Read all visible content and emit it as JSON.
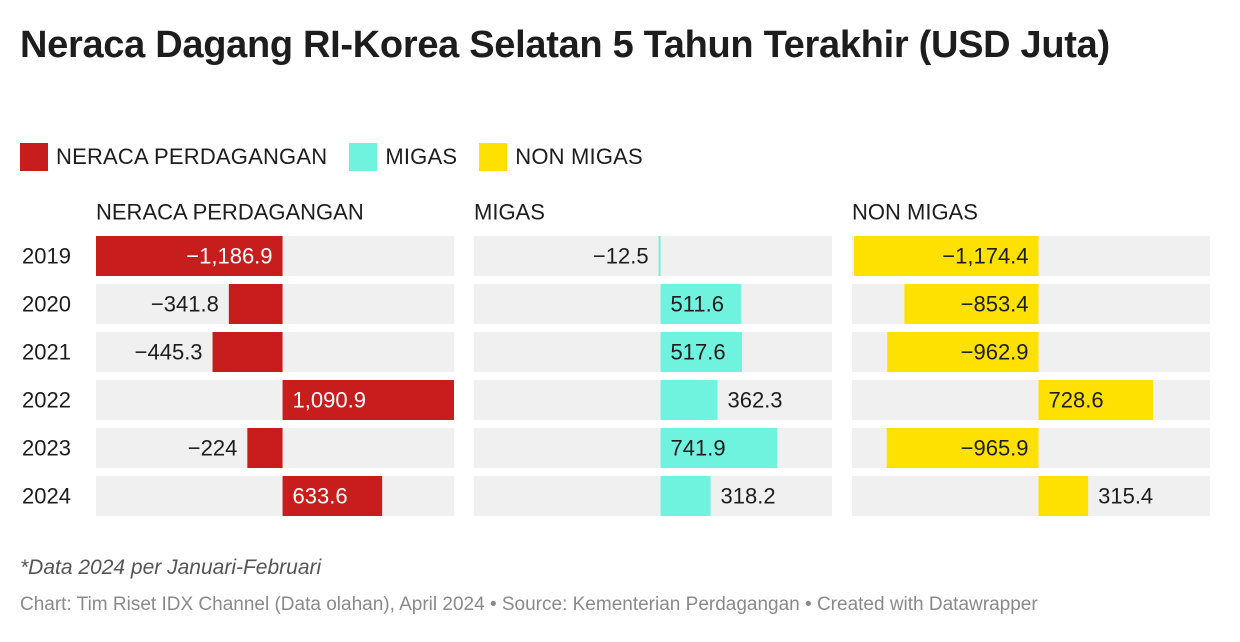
{
  "title": "Neraca Dagang RI-Korea Selatan 5 Tahun Terakhir (USD Juta)",
  "legend": [
    {
      "label": "NERACA PERDAGANGAN",
      "color": "#c71e1d"
    },
    {
      "label": "MIGAS",
      "color": "#6ff2de"
    },
    {
      "label": "NON MIGAS",
      "color": "#ffe100"
    }
  ],
  "chart_data": {
    "type": "bar",
    "categories": [
      "2019",
      "2020",
      "2021",
      "2022",
      "2023",
      "2024"
    ],
    "series": [
      {
        "name": "NERACA PERDAGANGAN",
        "color": "#c71e1d",
        "label_color_inside": "#ffffff",
        "values": [
          -1186.9,
          -341.8,
          -445.3,
          1090.9,
          -224,
          633.6
        ],
        "labels": [
          "−1,186.9",
          "−341.8",
          "−445.3",
          "1,090.9",
          "−224",
          "633.6"
        ]
      },
      {
        "name": "MIGAS",
        "color": "#6ff2de",
        "label_color_inside": "#1d1d1d",
        "values": [
          -12.5,
          511.6,
          517.6,
          362.3,
          741.9,
          318.2
        ],
        "labels": [
          "−12.5",
          "511.6",
          "517.6",
          "362.3",
          "741.9",
          "318.2"
        ]
      },
      {
        "name": "NON MIGAS",
        "color": "#ffe100",
        "label_color_inside": "#1d1d1d",
        "values": [
          -1174.4,
          -853.4,
          -962.9,
          728.6,
          -965.9,
          315.4
        ],
        "labels": [
          "−1,174.4",
          "−853.4",
          "−962.9",
          "728.6",
          "−965.9",
          "315.4"
        ]
      }
    ],
    "x_range": [
      -1186.9,
      1090.9
    ],
    "background": "#f0f0f0"
  },
  "note": "*Data 2024 per Januari-Februari",
  "credit": "Chart: Tim Riset IDX Channel (Data olahan), April 2024 • Source: Kementerian Perdagangan • Created with Datawrapper"
}
